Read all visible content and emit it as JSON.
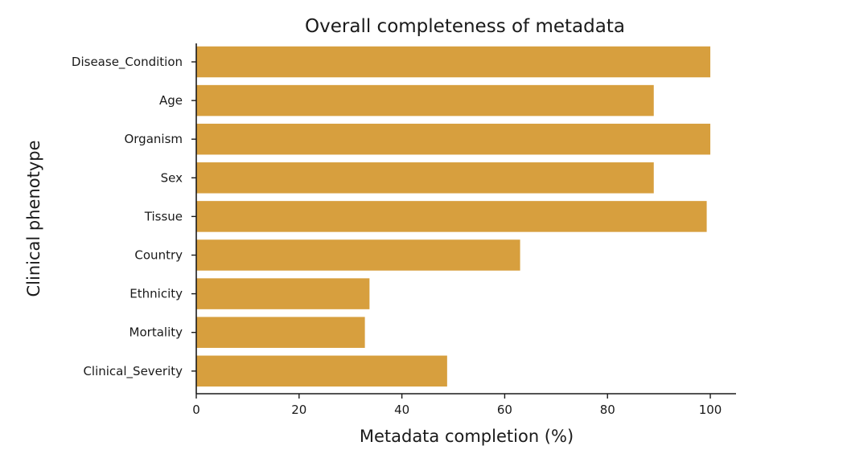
{
  "chart_data": {
    "type": "bar",
    "orientation": "horizontal",
    "title": "Overall completeness of metadata",
    "xlabel": "Metadata completion (%)",
    "ylabel": "Clinical phenotype",
    "categories": [
      "Disease_Condition",
      "Age",
      "Organism",
      "Sex",
      "Tissue",
      "Country",
      "Ethnicity",
      "Mortality",
      "Clinical_Severity"
    ],
    "values": [
      100,
      89,
      100,
      89,
      99.3,
      63,
      33.7,
      32.8,
      48.8
    ],
    "xlim": [
      0,
      105
    ],
    "xticks": [
      0,
      20,
      40,
      60,
      80,
      100
    ],
    "xtick_labels": [
      "0",
      "20",
      "40",
      "60",
      "80",
      "100"
    ],
    "bar_color": "#d79f3e",
    "grid": false
  }
}
